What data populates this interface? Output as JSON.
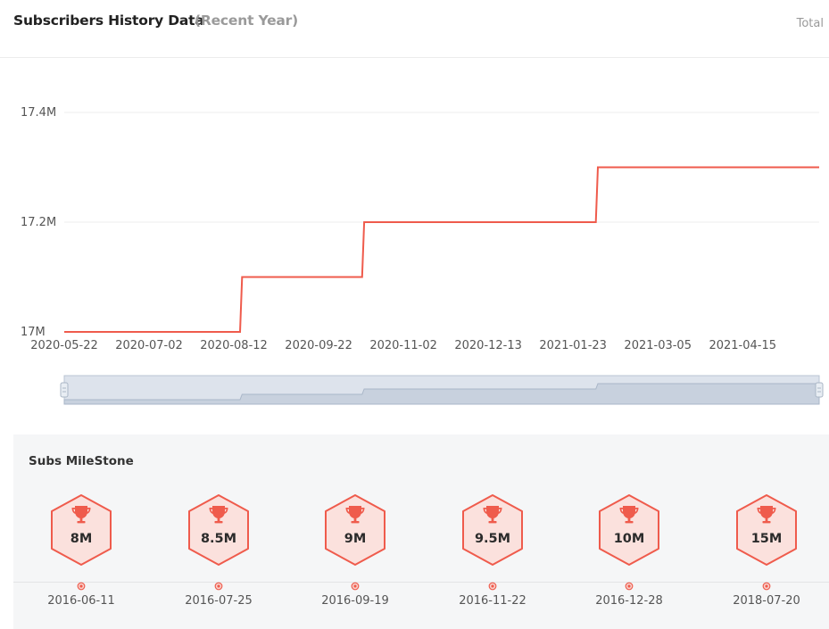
{
  "header": {
    "title": "Subscribers History Data",
    "subtitle": "(Recent Year)",
    "total_label": "Total"
  },
  "colors": {
    "line": "#ef5b4c",
    "grid": "#eeeeee",
    "badge_fill": "#fbe1dd",
    "badge_stroke": "#ef5b4c",
    "slider_fill": "#dde3ec",
    "slider_stroke": "#b9c4d3"
  },
  "chart_data": {
    "type": "line",
    "step": true,
    "ylim": [
      17000000,
      17400000
    ],
    "y_ticks": [
      {
        "value": 17000000,
        "label": "17M"
      },
      {
        "value": 17200000,
        "label": "17.2M"
      },
      {
        "value": 17400000,
        "label": "17.4M"
      }
    ],
    "x_range": [
      "2020-05-22",
      "2021-05-22"
    ],
    "x_tick_labels": [
      "2020-05-22",
      "2020-07-02",
      "2020-08-12",
      "2020-09-22",
      "2020-11-02",
      "2020-12-13",
      "2021-01-23",
      "2021-03-05",
      "2021-04-15"
    ],
    "series": [
      {
        "points": [
          {
            "x": "2020-05-22",
            "y": 17000000
          },
          {
            "x": "2020-08-15",
            "y": 17000000
          },
          {
            "x": "2020-08-16",
            "y": 17100000
          },
          {
            "x": "2020-10-13",
            "y": 17100000
          },
          {
            "x": "2020-10-14",
            "y": 17200000
          },
          {
            "x": "2021-02-03",
            "y": 17200000
          },
          {
            "x": "2021-02-04",
            "y": 17300000
          },
          {
            "x": "2021-05-22",
            "y": 17300000
          }
        ]
      }
    ],
    "grid": true,
    "has_range_slider": true
  },
  "milestones": {
    "title": "Subs MileStone",
    "icon": "trophy-icon",
    "items": [
      {
        "value": "8M",
        "date": "2016-06-11"
      },
      {
        "value": "8.5M",
        "date": "2016-07-25"
      },
      {
        "value": "9M",
        "date": "2016-09-19"
      },
      {
        "value": "9.5M",
        "date": "2016-11-22"
      },
      {
        "value": "10M",
        "date": "2016-12-28"
      },
      {
        "value": "15M",
        "date": "2018-07-20"
      }
    ]
  }
}
